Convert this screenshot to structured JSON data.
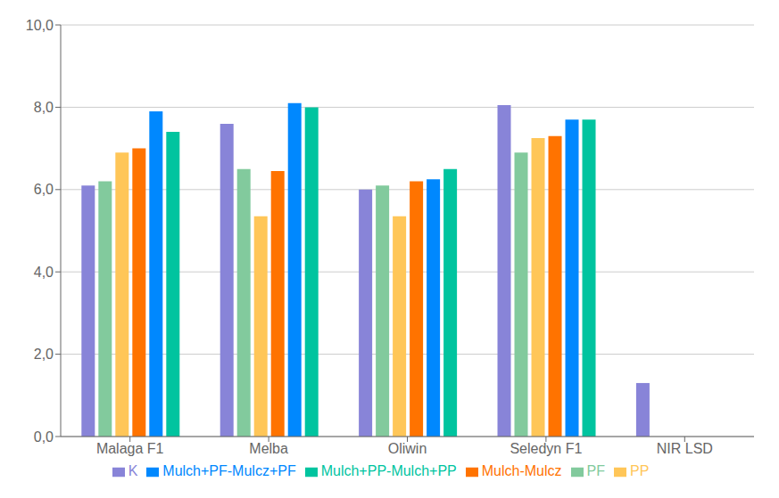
{
  "chart_data": {
    "type": "bar",
    "categories": [
      "Malaga F1",
      "Melba",
      "Oliwin",
      "Seledyn F1",
      "NIR LSD"
    ],
    "series": [
      {
        "name": "K",
        "values": [
          6.1,
          7.6,
          6.0,
          8.05,
          1.3
        ],
        "color": "#8884d8"
      },
      {
        "name": "PF",
        "values": [
          6.2,
          6.5,
          6.1,
          6.9,
          0.0
        ],
        "color": "#82ca9d"
      },
      {
        "name": "PP",
        "values": [
          6.9,
          5.35,
          5.35,
          7.25,
          0.0
        ],
        "color": "#ffc658"
      },
      {
        "name": "Mulch-Mulcz",
        "values": [
          7.0,
          6.45,
          6.2,
          7.3,
          0.0
        ],
        "color": "#ff7300"
      },
      {
        "name": "Mulch+PF-Mulcz+PF",
        "values": [
          7.9,
          8.1,
          6.25,
          7.7,
          0.0
        ],
        "color": "#0088fe"
      },
      {
        "name": "Mulch+PP-Mulch+PP",
        "values": [
          7.4,
          8.0,
          6.5,
          7.7,
          0.0
        ],
        "color": "#00c49f"
      }
    ],
    "ylim": [
      0,
      10.0
    ],
    "yticks": [
      {
        "value": 0.0,
        "label": "0,0"
      },
      {
        "value": 2.0,
        "label": "2,0"
      },
      {
        "value": 4.0,
        "label": "4,0"
      },
      {
        "value": 6.0,
        "label": "6,0"
      },
      {
        "value": 8.0,
        "label": "8,0"
      },
      {
        "value": 10.0,
        "label": "10,0"
      }
    ],
    "grid": true,
    "legend": "bottom"
  }
}
